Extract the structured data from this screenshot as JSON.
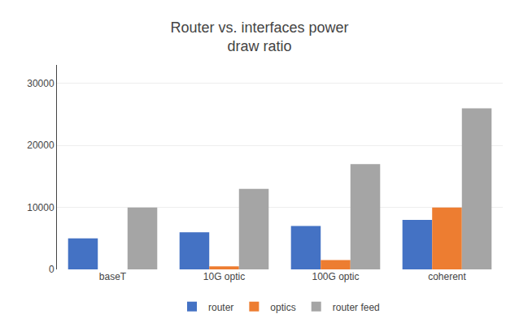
{
  "chart_data": {
    "type": "bar",
    "title": "Router vs. interfaces power\ndraw ratio",
    "categories": [
      "baseT",
      "10G optic",
      "100G optic",
      "coherent"
    ],
    "series": [
      {
        "name": "router",
        "color": "#4472C4",
        "values": [
          5000,
          6000,
          7000,
          8000
        ]
      },
      {
        "name": "optics",
        "color": "#ED7D31",
        "values": [
          0,
          500,
          1500,
          10000
        ]
      },
      {
        "name": "router feed",
        "color": "#A5A5A5",
        "values": [
          10000,
          13000,
          17000,
          26000
        ]
      }
    ],
    "ylim": [
      0,
      33000
    ],
    "yticks": [
      0,
      10000,
      20000,
      30000
    ],
    "grid": true,
    "legend": "bottom"
  }
}
